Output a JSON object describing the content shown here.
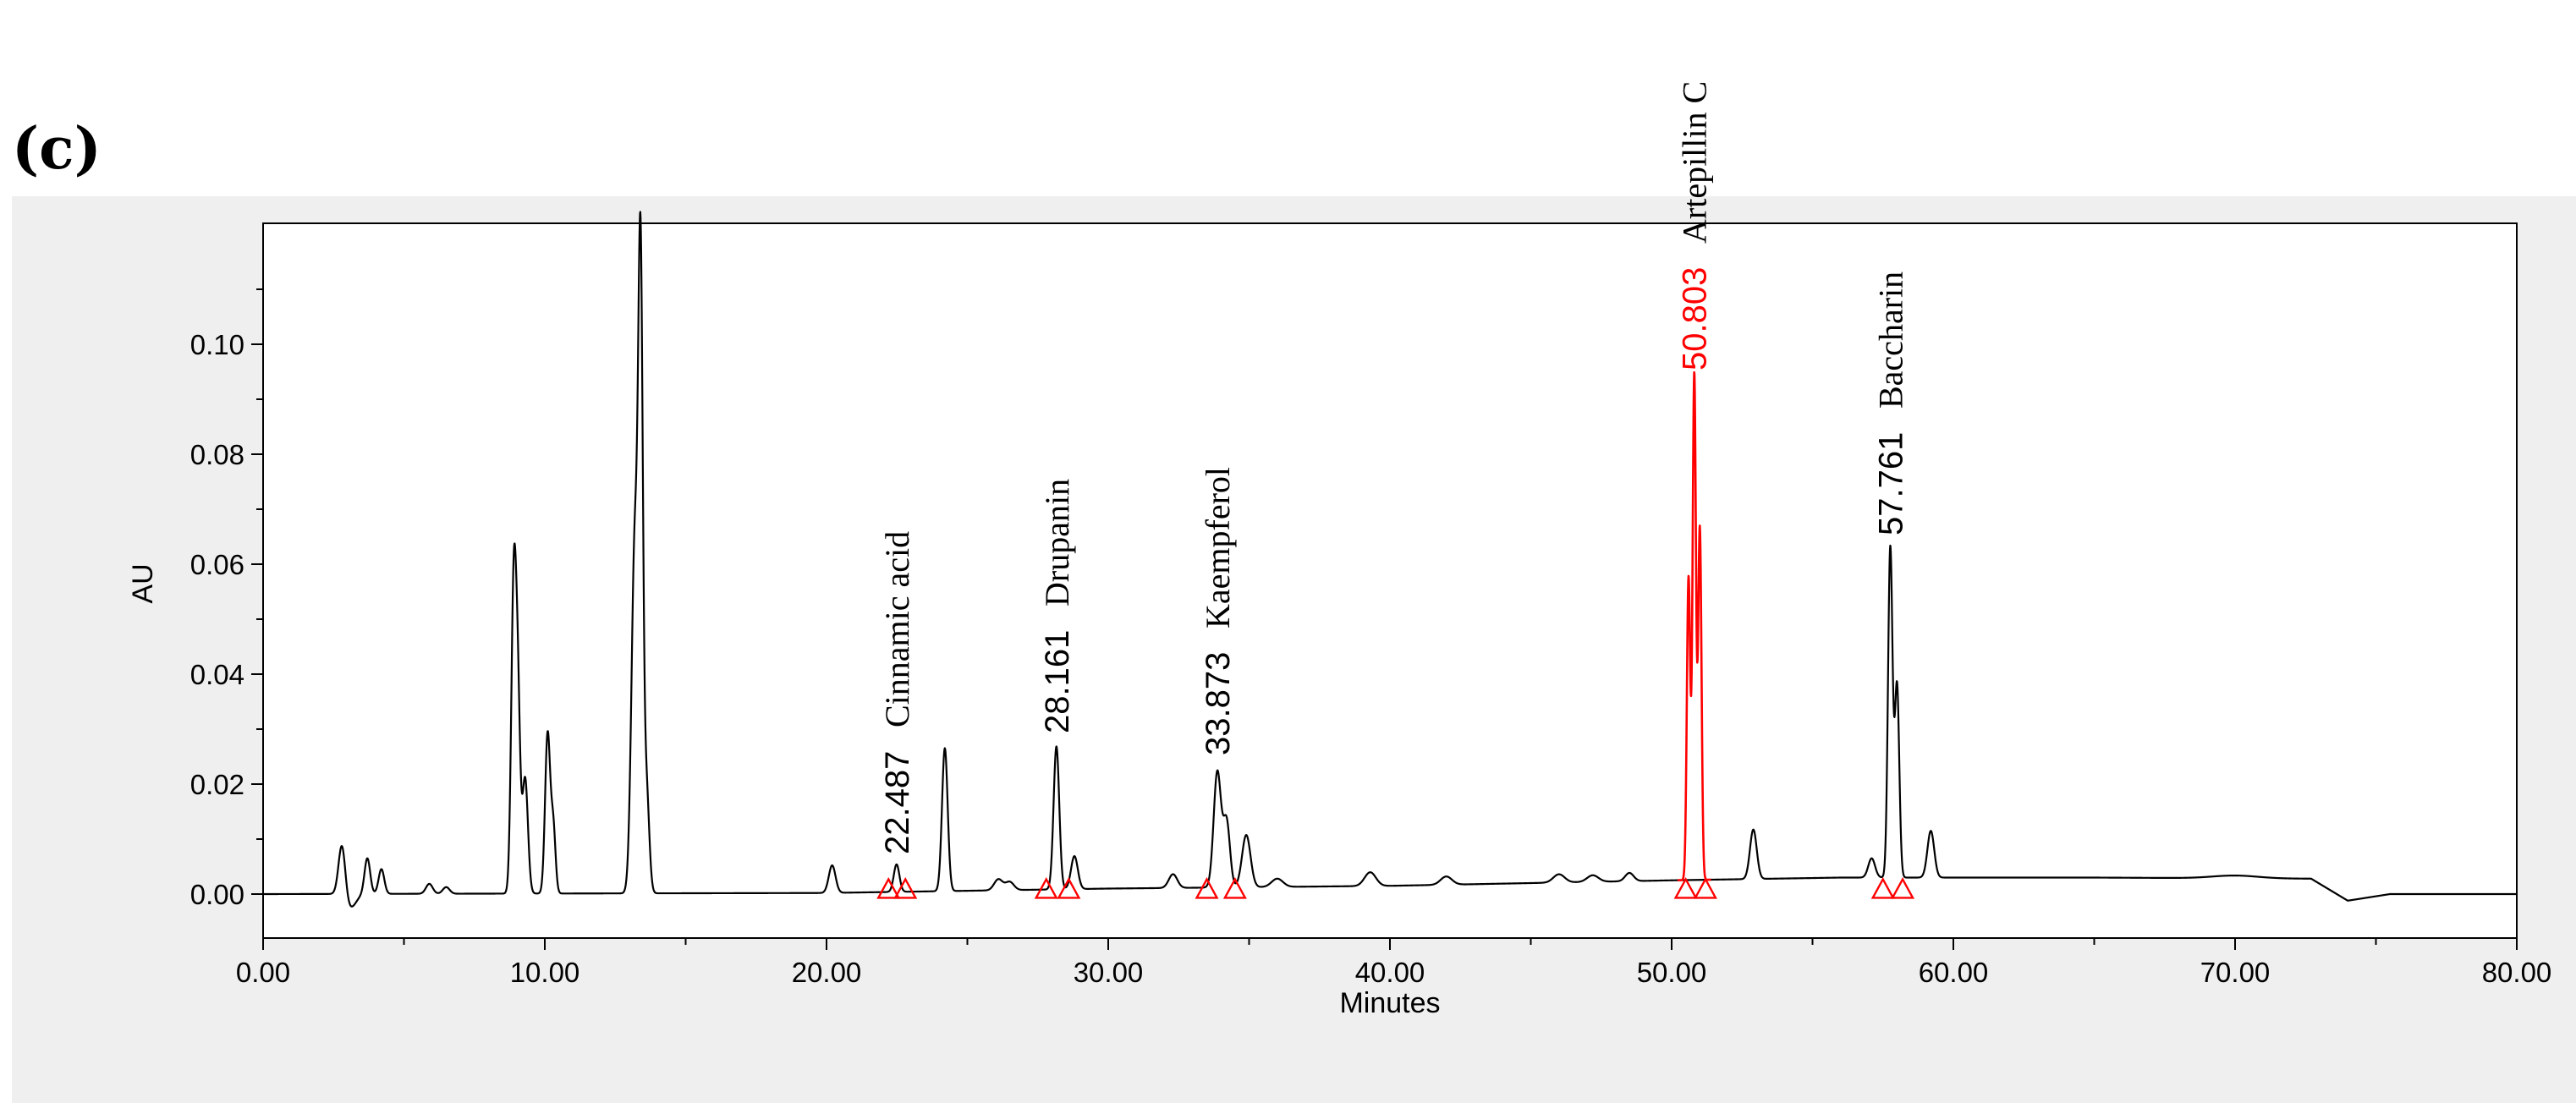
{
  "panel_label": "(c)",
  "chart_data": {
    "type": "line",
    "xlabel": "Minutes",
    "ylabel": "AU",
    "xlim": [
      0,
      80
    ],
    "ylim": [
      -0.008,
      0.122
    ],
    "x_ticks": [
      "0.00",
      "10.00",
      "20.00",
      "30.00",
      "40.00",
      "50.00",
      "60.00",
      "70.00",
      "80.00"
    ],
    "y_ticks": [
      "0.00",
      "0.02",
      "0.04",
      "0.06",
      "0.08",
      "0.10"
    ],
    "grid": false,
    "baseline": 0.0,
    "colors": {
      "trace": "#000000",
      "highlight": "#ff0000",
      "marker": "#ff0000",
      "plot_bg": "#ffffff",
      "frame_bg": "#efefef"
    },
    "peaks": [
      {
        "rt": 2.8,
        "height": 0.0095,
        "width": 0.12
      },
      {
        "rt": 3.1,
        "height": -0.0025,
        "width": 0.2
      },
      {
        "rt": 3.7,
        "height": 0.0065,
        "width": 0.1
      },
      {
        "rt": 4.2,
        "height": 0.0045,
        "width": 0.1
      },
      {
        "rt": 5.9,
        "height": 0.0018,
        "width": 0.12
      },
      {
        "rt": 6.5,
        "height": 0.0012,
        "width": 0.12
      },
      {
        "rt": 8.9,
        "height": 0.057,
        "width": 0.09
      },
      {
        "rt": 9.05,
        "height": 0.03,
        "width": 0.08
      },
      {
        "rt": 9.3,
        "height": 0.021,
        "width": 0.1
      },
      {
        "rt": 10.1,
        "height": 0.029,
        "width": 0.09
      },
      {
        "rt": 10.3,
        "height": 0.012,
        "width": 0.08
      },
      {
        "rt": 13.2,
        "height": 0.065,
        "width": 0.12
      },
      {
        "rt": 13.4,
        "height": 0.104,
        "width": 0.08
      },
      {
        "rt": 13.6,
        "height": 0.02,
        "width": 0.1
      },
      {
        "rt": 20.2,
        "height": 0.005,
        "width": 0.12
      },
      {
        "rt": 22.487,
        "height": 0.005,
        "width": 0.1
      },
      {
        "rt": 24.2,
        "height": 0.026,
        "width": 0.1
      },
      {
        "rt": 26.1,
        "height": 0.002,
        "width": 0.15
      },
      {
        "rt": 26.5,
        "height": 0.0015,
        "width": 0.15
      },
      {
        "rt": 28.161,
        "height": 0.026,
        "width": 0.1
      },
      {
        "rt": 28.8,
        "height": 0.006,
        "width": 0.12
      },
      {
        "rt": 32.3,
        "height": 0.0025,
        "width": 0.15
      },
      {
        "rt": 33.873,
        "height": 0.021,
        "width": 0.13
      },
      {
        "rt": 34.2,
        "height": 0.012,
        "width": 0.12
      },
      {
        "rt": 34.9,
        "height": 0.0095,
        "width": 0.15
      },
      {
        "rt": 36.0,
        "height": 0.0015,
        "width": 0.2
      },
      {
        "rt": 39.3,
        "height": 0.0025,
        "width": 0.2
      },
      {
        "rt": 42.0,
        "height": 0.0015,
        "width": 0.2
      },
      {
        "rt": 46.0,
        "height": 0.0015,
        "width": 0.2
      },
      {
        "rt": 47.2,
        "height": 0.0012,
        "width": 0.2
      },
      {
        "rt": 48.5,
        "height": 0.0015,
        "width": 0.15
      },
      {
        "rt": 50.6,
        "height": 0.055,
        "width": 0.06
      },
      {
        "rt": 50.803,
        "height": 0.092,
        "width": 0.06
      },
      {
        "rt": 51.0,
        "height": 0.064,
        "width": 0.06
      },
      {
        "rt": 52.9,
        "height": 0.009,
        "width": 0.12
      },
      {
        "rt": 57.1,
        "height": 0.0035,
        "width": 0.12
      },
      {
        "rt": 57.761,
        "height": 0.06,
        "width": 0.08
      },
      {
        "rt": 58.0,
        "height": 0.035,
        "width": 0.08
      },
      {
        "rt": 59.2,
        "height": 0.0085,
        "width": 0.12
      },
      {
        "rt": 70.0,
        "height": 0.0005,
        "width": 0.8
      }
    ],
    "drift": [
      {
        "x": 0,
        "y": 0.0
      },
      {
        "x": 20,
        "y": 0.0002
      },
      {
        "x": 30,
        "y": 0.001
      },
      {
        "x": 40,
        "y": 0.0015
      },
      {
        "x": 50,
        "y": 0.0025
      },
      {
        "x": 56,
        "y": 0.003
      },
      {
        "x": 65,
        "y": 0.003
      },
      {
        "x": 72.7,
        "y": 0.0028
      },
      {
        "x": 74.0,
        "y": -0.0012
      },
      {
        "x": 75.5,
        "y": 0.0
      },
      {
        "x": 80,
        "y": 0.0
      }
    ],
    "highlight_range": [
      50.2,
      51.4
    ],
    "labeled_peaks": [
      {
        "rt_label": "22.487",
        "rt": 22.487,
        "apex": 0.006,
        "name": "Cinnamic acid",
        "color": "#000000",
        "markers": [
          22.2,
          22.8
        ]
      },
      {
        "rt_label": "28.161",
        "rt": 28.161,
        "apex": 0.028,
        "name": "Drupanin",
        "color": "#000000",
        "markers": [
          27.8,
          28.6
        ]
      },
      {
        "rt_label": "33.873",
        "rt": 33.873,
        "apex": 0.024,
        "name": "Kaempferol",
        "color": "#000000",
        "markers": [
          33.5,
          34.5
        ]
      },
      {
        "rt_label": "50.803",
        "rt": 50.803,
        "apex": 0.094,
        "name": "Artepillin C",
        "color": "#ff0000",
        "markers": [
          50.5,
          51.2
        ]
      },
      {
        "rt_label": "57.761",
        "rt": 57.761,
        "apex": 0.064,
        "name": "Baccharin",
        "color": "#000000",
        "markers": [
          57.5,
          58.2
        ]
      }
    ]
  }
}
